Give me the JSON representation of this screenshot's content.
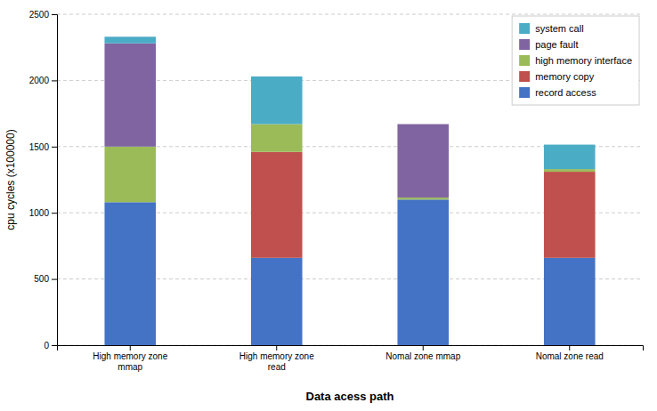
{
  "chart_data": {
    "type": "bar",
    "stacked": true,
    "categories": [
      "High memory zone\nmmap",
      "High memory zone\nread",
      "Nomal zone mmap",
      "Nomal zone read"
    ],
    "series": [
      {
        "name": "record access",
        "color": "#4472C4",
        "values": [
          1080,
          660,
          1100,
          660
        ]
      },
      {
        "name": "memory copy",
        "color": "#C0504D",
        "values": [
          0,
          800,
          0,
          650
        ]
      },
      {
        "name": "high memory interface",
        "color": "#9BBB59",
        "values": [
          420,
          210,
          15,
          20
        ]
      },
      {
        "name": "page fault",
        "color": "#8064A2",
        "values": [
          780,
          0,
          555,
          0
        ]
      },
      {
        "name": "system call",
        "color": "#4BACC6",
        "values": [
          50,
          360,
          0,
          185
        ]
      }
    ],
    "xlabel": "Data acess path",
    "ylabel": "cpu cycles (x100000)",
    "ylim": [
      0,
      2500
    ],
    "yticks": [
      0,
      500,
      1000,
      1500,
      2000,
      2500
    ],
    "grid": true,
    "legend": "upper right"
  }
}
